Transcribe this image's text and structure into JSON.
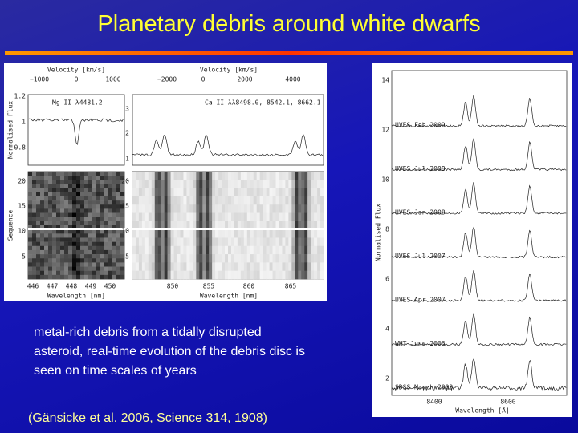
{
  "header": {
    "title": "Planetary debris around white dwarfs"
  },
  "body": {
    "lines": [
      "metal-rich debris from a tidally disrupted",
      "asteroid, real-time evolution of the debris disc is",
      "seen on time scales of years"
    ]
  },
  "citation": "(Gänsicke et al. 2006, Science 314, 1908)",
  "left_figure": {
    "velocity_label": "Velocity [km/s]",
    "mg_velocity_ticks": [
      "−1000",
      "0",
      "1000"
    ],
    "ca_velocity_ticks": [
      "−2000",
      "0",
      "2000",
      "4000"
    ],
    "mg_annotation": "Mg II λ4481.2",
    "ca_annotation": "Ca II λλ8498.0, 8542.1, 8662.1",
    "flux_label": "Normalised Flux",
    "mg_flux_ticks": [
      "1.2",
      "1",
      "0.8"
    ],
    "ca_flux_ticks": [
      "3",
      "2",
      "1"
    ],
    "sequence_label": "Sequence",
    "sequence_ticks": [
      "20",
      "15",
      "10",
      "5"
    ],
    "mg_wavelength_ticks": [
      "446",
      "447",
      "448",
      "449",
      "450"
    ],
    "ca_wavelength_ticks": [
      "850",
      "855",
      "860",
      "865"
    ],
    "wavelength_label": "Wavelength [nm]"
  },
  "right_figure": {
    "flux_label": "Normalised Flux",
    "flux_ticks": [
      "14",
      "12",
      "10",
      "8",
      "6",
      "4",
      "2"
    ],
    "epochs": [
      "UVES Feb 2009",
      "UVES Jul 2008",
      "UVES Jan 2008",
      "UVES Jul 2007",
      "UVES Apr 2007",
      "WHT June 2006",
      "SDSS March 2003"
    ],
    "wavelength_ticks": [
      "8400",
      "8600"
    ],
    "wavelength_label": "Wavelength [Å]"
  }
}
